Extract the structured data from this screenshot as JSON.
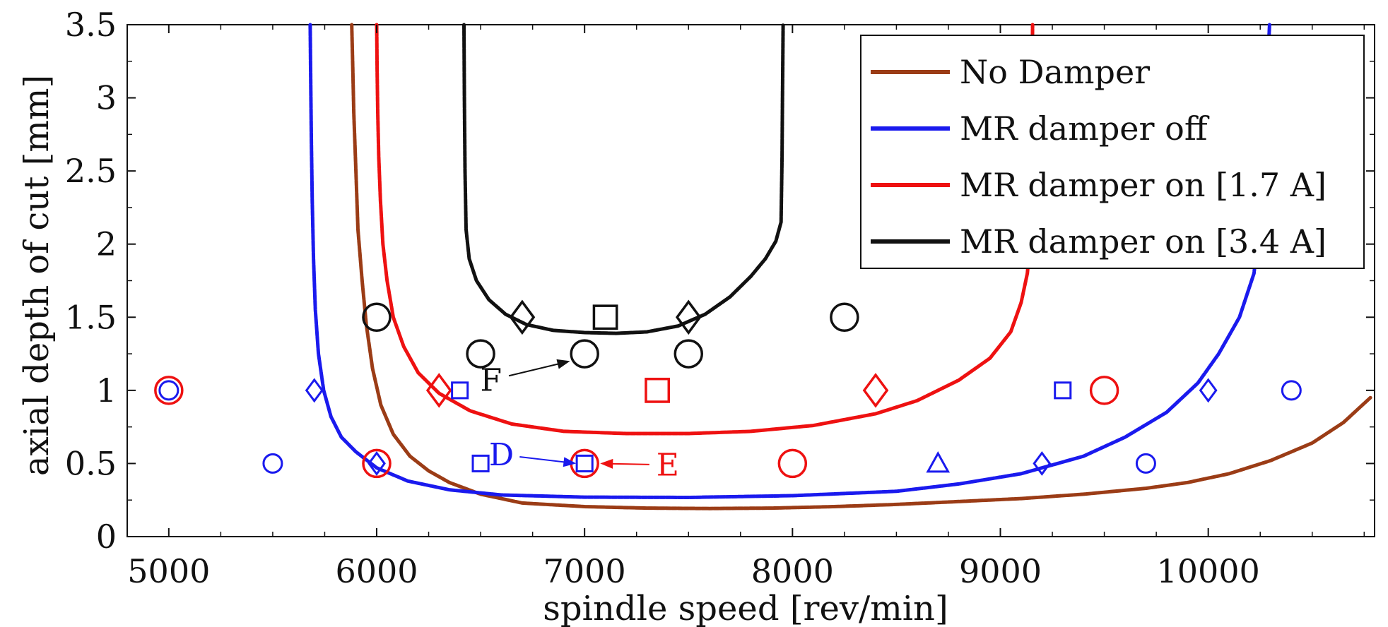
{
  "chart_data": {
    "type": "line",
    "xlabel": "spindle speed [rev/min]",
    "ylabel": "axial depth of cut [mm]",
    "xlim": [
      4800,
      10800
    ],
    "ylim": [
      0,
      3.5
    ],
    "xticks": [
      5000,
      6000,
      7000,
      8000,
      9000,
      10000
    ],
    "yticks": [
      0,
      0.5,
      1,
      1.5,
      2,
      2.5,
      3,
      3.5
    ],
    "ytick_labels": [
      "0",
      "0.5",
      "1",
      "1.5",
      "2",
      "2.5",
      "3",
      "3.5"
    ],
    "legend_position": "top-right",
    "grid": false,
    "series": [
      {
        "name": "No Damper",
        "color": "#9b3c16",
        "x": [
          5880,
          5885,
          5890,
          5900,
          5910,
          5930,
          5950,
          5980,
          6020,
          6080,
          6160,
          6250,
          6350,
          6500,
          6700,
          7000,
          7300,
          7600,
          7900,
          8200,
          8500,
          8800,
          9100,
          9400,
          9700,
          9900,
          10100,
          10300,
          10500,
          10650,
          10780
        ],
        "y": [
          3.5,
          3.2,
          2.9,
          2.5,
          2.1,
          1.75,
          1.45,
          1.15,
          0.9,
          0.7,
          0.55,
          0.45,
          0.37,
          0.29,
          0.23,
          0.205,
          0.195,
          0.192,
          0.195,
          0.205,
          0.22,
          0.24,
          0.26,
          0.29,
          0.33,
          0.37,
          0.43,
          0.52,
          0.64,
          0.78,
          0.95
        ]
      },
      {
        "name": "MR damper off",
        "color": "#1a1aee",
        "x": [
          5680,
          5683,
          5686,
          5690,
          5696,
          5705,
          5720,
          5745,
          5780,
          5830,
          5900,
          6000,
          6150,
          6350,
          6600,
          7000,
          7500,
          8000,
          8500,
          8800,
          9100,
          9400,
          9600,
          9800,
          9950,
          10050,
          10150,
          10220,
          10250,
          10270,
          10285,
          10295
        ],
        "y": [
          3.5,
          3.1,
          2.7,
          2.3,
          1.9,
          1.55,
          1.25,
          1.0,
          0.82,
          0.68,
          0.58,
          0.47,
          0.38,
          0.32,
          0.285,
          0.27,
          0.268,
          0.28,
          0.31,
          0.36,
          0.43,
          0.55,
          0.68,
          0.85,
          1.05,
          1.25,
          1.5,
          1.8,
          2.2,
          2.7,
          3.2,
          3.5
        ]
      },
      {
        "name": "MR damper on [1.7 A]",
        "color": "#ee1111",
        "x": [
          6000,
          6002,
          6005,
          6010,
          6018,
          6030,
          6050,
          6080,
          6130,
          6200,
          6300,
          6450,
          6650,
          6900,
          7200,
          7500,
          7800,
          8100,
          8400,
          8600,
          8800,
          8950,
          9050,
          9100,
          9130,
          9145,
          9150,
          9152,
          9155
        ],
        "y": [
          3.5,
          3.2,
          2.9,
          2.6,
          2.3,
          2.0,
          1.75,
          1.5,
          1.3,
          1.12,
          0.98,
          0.86,
          0.77,
          0.72,
          0.705,
          0.705,
          0.72,
          0.76,
          0.84,
          0.93,
          1.07,
          1.22,
          1.4,
          1.6,
          1.8,
          2.05,
          2.4,
          3.0,
          3.5
        ]
      },
      {
        "name": "MR damper on [3.4 A]",
        "color": "#111111",
        "x": [
          6420,
          6422,
          6425,
          6430,
          6445,
          6480,
          6540,
          6620,
          6720,
          6850,
          7000,
          7150,
          7300,
          7450,
          7580,
          7700,
          7800,
          7870,
          7920,
          7945,
          7950,
          7952,
          7955
        ],
        "y": [
          3.5,
          3.0,
          2.5,
          2.1,
          1.9,
          1.75,
          1.62,
          1.52,
          1.45,
          1.41,
          1.395,
          1.39,
          1.4,
          1.44,
          1.52,
          1.64,
          1.78,
          1.9,
          2.02,
          2.15,
          2.6,
          3.0,
          3.5
        ]
      }
    ],
    "markers": [
      {
        "shape": "circle",
        "color": "#ee1111",
        "size": "large",
        "x": 5000,
        "y": 1.0
      },
      {
        "shape": "circle",
        "color": "#1a1aee",
        "size": "small",
        "x": 5000,
        "y": 1.0
      },
      {
        "shape": "circle",
        "color": "#1a1aee",
        "size": "small",
        "x": 5500,
        "y": 0.5
      },
      {
        "shape": "diamond",
        "color": "#1a1aee",
        "size": "small",
        "x": 5700,
        "y": 1.0
      },
      {
        "shape": "circle",
        "color": "#ee1111",
        "size": "large",
        "x": 6000,
        "y": 0.5
      },
      {
        "shape": "diamond",
        "color": "#1a1aee",
        "size": "small",
        "x": 6000,
        "y": 0.5
      },
      {
        "shape": "circle",
        "color": "#111111",
        "size": "large",
        "x": 6000,
        "y": 1.5
      },
      {
        "shape": "diamond",
        "color": "#ee1111",
        "size": "large",
        "x": 6300,
        "y": 1.0
      },
      {
        "shape": "square",
        "color": "#1a1aee",
        "size": "small",
        "x": 6400,
        "y": 1.0
      },
      {
        "shape": "square",
        "color": "#1a1aee",
        "size": "small",
        "x": 6500,
        "y": 0.5
      },
      {
        "shape": "circle",
        "color": "#111111",
        "size": "large",
        "x": 6500,
        "y": 1.25
      },
      {
        "shape": "diamond",
        "color": "#111111",
        "size": "large",
        "x": 6700,
        "y": 1.5
      },
      {
        "shape": "circle",
        "color": "#ee1111",
        "size": "large",
        "x": 7000,
        "y": 0.5
      },
      {
        "shape": "square",
        "color": "#1a1aee",
        "size": "small",
        "x": 7000,
        "y": 0.5
      },
      {
        "shape": "circle",
        "color": "#111111",
        "size": "large",
        "x": 7000,
        "y": 1.25
      },
      {
        "shape": "square",
        "color": "#111111",
        "size": "large",
        "x": 7100,
        "y": 1.5
      },
      {
        "shape": "square",
        "color": "#ee1111",
        "size": "large",
        "x": 7350,
        "y": 1.0
      },
      {
        "shape": "circle",
        "color": "#111111",
        "size": "large",
        "x": 7500,
        "y": 1.25
      },
      {
        "shape": "diamond",
        "color": "#111111",
        "size": "large",
        "x": 7500,
        "y": 1.5
      },
      {
        "shape": "circle",
        "color": "#ee1111",
        "size": "large",
        "x": 8000,
        "y": 0.5
      },
      {
        "shape": "circle",
        "color": "#111111",
        "size": "large",
        "x": 8250,
        "y": 1.5
      },
      {
        "shape": "diamond",
        "color": "#ee1111",
        "size": "large",
        "x": 8400,
        "y": 1.0
      },
      {
        "shape": "triangle",
        "color": "#1a1aee",
        "size": "small",
        "x": 8700,
        "y": 0.5
      },
      {
        "shape": "diamond",
        "color": "#1a1aee",
        "size": "small",
        "x": 9200,
        "y": 0.5
      },
      {
        "shape": "square",
        "color": "#1a1aee",
        "size": "small",
        "x": 9300,
        "y": 1.0
      },
      {
        "shape": "circle",
        "color": "#ee1111",
        "size": "large",
        "x": 9500,
        "y": 1.0
      },
      {
        "shape": "circle",
        "color": "#1a1aee",
        "size": "small",
        "x": 9700,
        "y": 0.5
      },
      {
        "shape": "diamond",
        "color": "#1a1aee",
        "size": "small",
        "x": 10000,
        "y": 1.0
      },
      {
        "shape": "circle",
        "color": "#1a1aee",
        "size": "small",
        "x": 10400,
        "y": 1.0
      }
    ],
    "annotations": [
      {
        "text": "D",
        "color": "#1a1aee",
        "x": 6600,
        "y": 0.56,
        "arrow_to": [
          6960,
          0.5
        ]
      },
      {
        "text": "E",
        "color": "#ee1111",
        "x": 7400,
        "y": 0.49,
        "arrow_to": [
          7075,
          0.5
        ]
      },
      {
        "text": "F",
        "color": "#111111",
        "x": 6550,
        "y": 1.07,
        "arrow_to": [
          6930,
          1.2
        ]
      }
    ]
  }
}
